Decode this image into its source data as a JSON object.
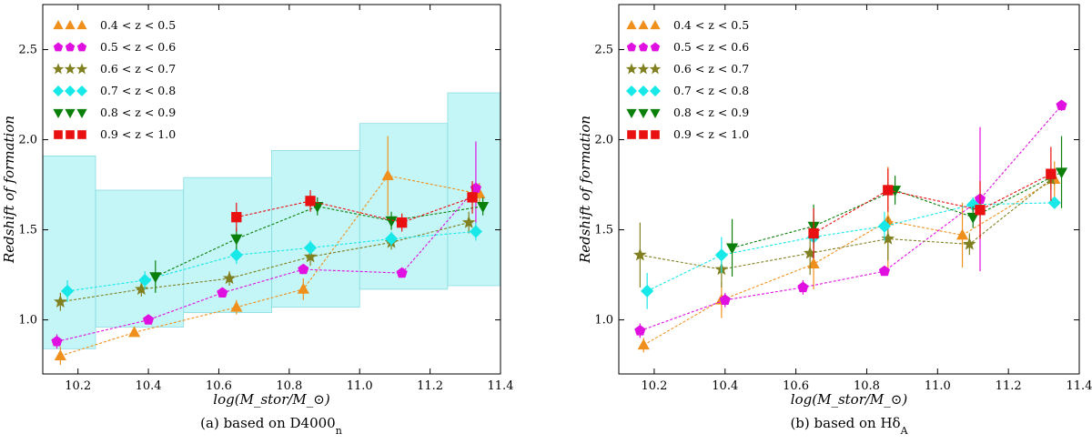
{
  "chart_data": [
    {
      "type": "scatter",
      "panel_caption": "(a) based on D4000",
      "caption_subscript": "n",
      "xlabel": "log(M_stor/M_⊙)",
      "ylabel": "Redshift of formation",
      "xlim": [
        10.1,
        11.4
      ],
      "ylim": [
        0.7,
        2.75
      ],
      "xticks": [
        "10.2",
        "10.4",
        "10.6",
        "10.8",
        "11.0",
        "11.2",
        "11.4"
      ],
      "yticks": [
        "1.0",
        "1.5",
        "2.0",
        "2.5"
      ],
      "shaded_bins": [
        {
          "x0": 10.0,
          "x1": 10.25,
          "y0": 0.84,
          "y1": 1.91
        },
        {
          "x0": 10.25,
          "x1": 10.5,
          "y0": 0.96,
          "y1": 1.72
        },
        {
          "x0": 10.5,
          "x1": 10.75,
          "y0": 1.04,
          "y1": 1.79
        },
        {
          "x0": 10.75,
          "x1": 11.0,
          "y0": 1.07,
          "y1": 1.94
        },
        {
          "x0": 11.0,
          "x1": 11.25,
          "y0": 1.17,
          "y1": 2.09
        },
        {
          "x0": 11.25,
          "x1": 11.5,
          "y0": 1.19,
          "y1": 2.26
        }
      ],
      "series": [
        {
          "name": "0.4 < z < 0.5",
          "color": "#f0901c",
          "marker": "triangle-up",
          "x": [
            10.15,
            10.36,
            10.65,
            10.84,
            11.08,
            11.34
          ],
          "y": [
            0.8,
            0.93,
            1.07,
            1.17,
            1.8,
            1.7
          ],
          "err": [
            0.05,
            0.02,
            0.04,
            0.06,
            0.22,
            0.06
          ]
        },
        {
          "name": "0.5 < z < 0.6",
          "color": "#e010e0",
          "marker": "pentagon",
          "x": [
            10.14,
            10.4,
            10.61,
            10.84,
            11.12,
            11.33
          ],
          "y": [
            0.88,
            1.0,
            1.15,
            1.28,
            1.26,
            1.73
          ],
          "err": [
            0.04,
            0.02,
            0.02,
            0.02,
            0.02,
            0.26
          ]
        },
        {
          "name": "0.6 < z < 0.7",
          "color": "#808020",
          "marker": "star",
          "x": [
            10.15,
            10.38,
            10.63,
            10.86,
            11.09,
            11.31
          ],
          "y": [
            1.1,
            1.17,
            1.23,
            1.35,
            1.43,
            1.54
          ],
          "err": [
            0.05,
            0.04,
            0.04,
            0.05,
            0.04,
            0.06
          ]
        },
        {
          "name": "0.7 < z < 0.8",
          "color": "#18e8e8",
          "marker": "diamond",
          "x": [
            10.17,
            10.39,
            10.65,
            10.86,
            11.09,
            11.33
          ],
          "y": [
            1.16,
            1.22,
            1.36,
            1.4,
            1.45,
            1.49
          ],
          "err": [
            0.06,
            0.05,
            0.05,
            0.04,
            0.04,
            0.05
          ]
        },
        {
          "name": "0.8 < z < 0.9",
          "color": "#0a7f0a",
          "marker": "triangle-down",
          "x": [
            10.42,
            10.65,
            10.88,
            11.09,
            11.35
          ],
          "y": [
            1.24,
            1.45,
            1.63,
            1.55,
            1.63
          ],
          "err": [
            0.09,
            0.06,
            0.05,
            0.05,
            0.05
          ]
        },
        {
          "name": "0.9 < z < 1.0",
          "color": "#e81010",
          "marker": "square",
          "x": [
            10.65,
            10.86,
            11.12,
            11.32
          ],
          "y": [
            1.57,
            1.66,
            1.54,
            1.68
          ],
          "err": [
            0.08,
            0.06,
            0.05,
            0.09
          ]
        }
      ]
    },
    {
      "type": "scatter",
      "panel_caption": "(b) based on Hδ",
      "caption_subscript": "A",
      "xlabel": "log(M_stor/M_⊙)",
      "ylabel": "Redshift of formation",
      "xlim": [
        10.1,
        11.4
      ],
      "ylim": [
        0.7,
        2.75
      ],
      "xticks": [
        "10.2",
        "10.4",
        "10.6",
        "10.8",
        "11.0",
        "11.2",
        "11.4"
      ],
      "yticks": [
        "1.0",
        "1.5",
        "2.0",
        "2.5"
      ],
      "series": [
        {
          "name": "0.4 < z < 0.5",
          "color": "#f0901c",
          "marker": "triangle-up",
          "x": [
            10.17,
            10.39,
            10.65,
            10.86,
            11.07,
            11.33
          ],
          "y": [
            0.86,
            1.11,
            1.31,
            1.55,
            1.47,
            1.78
          ],
          "err": [
            0.04,
            0.1,
            0.14,
            0.3,
            0.18,
            0.1
          ]
        },
        {
          "name": "0.5 < z < 0.6",
          "color": "#e010e0",
          "marker": "pentagon",
          "x": [
            10.16,
            10.4,
            10.62,
            10.85,
            11.12,
            11.35
          ],
          "y": [
            0.94,
            1.11,
            1.18,
            1.27,
            1.67,
            2.19
          ],
          "err": [
            0.04,
            0.04,
            0.04,
            0.02,
            0.4,
            0.03
          ]
        },
        {
          "name": "0.6 < z < 0.7",
          "color": "#808020",
          "marker": "star",
          "x": [
            10.16,
            10.39,
            10.64,
            10.86,
            11.09,
            11.32
          ],
          "y": [
            1.36,
            1.28,
            1.37,
            1.45,
            1.42,
            1.78
          ],
          "err": [
            0.18,
            0.1,
            0.12,
            0.12,
            0.06,
            0.06
          ]
        },
        {
          "name": "0.7 < z < 0.8",
          "color": "#18e8e8",
          "marker": "diamond",
          "x": [
            10.18,
            10.39,
            10.65,
            10.85,
            11.1,
            11.33
          ],
          "y": [
            1.16,
            1.36,
            1.46,
            1.52,
            1.64,
            1.65
          ],
          "err": [
            0.1,
            0.1,
            0.12,
            0.08,
            0.04,
            0.03
          ]
        },
        {
          "name": "0.8 < z < 0.9",
          "color": "#0a7f0a",
          "marker": "triangle-down",
          "x": [
            10.42,
            10.65,
            10.88,
            11.1,
            11.35
          ],
          "y": [
            1.4,
            1.52,
            1.72,
            1.57,
            1.82
          ],
          "err": [
            0.16,
            0.12,
            0.08,
            0.06,
            0.2
          ]
        },
        {
          "name": "0.9 < z < 1.0",
          "color": "#e81010",
          "marker": "square",
          "x": [
            10.65,
            10.86,
            11.12,
            11.32
          ],
          "y": [
            1.48,
            1.72,
            1.61,
            1.81
          ],
          "err": [
            0.14,
            0.12,
            0.16,
            0.15
          ]
        }
      ]
    }
  ]
}
